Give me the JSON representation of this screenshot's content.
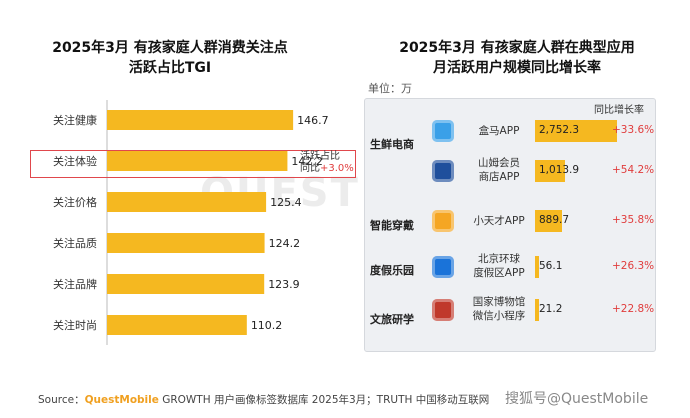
{
  "left_chart": {
    "title_line1": "2025年3月 有孩家庭人群消费关注点",
    "title_line2": "活跃占比TGI",
    "highlight_note_line1": "活跃占比",
    "highlight_note_prefix": "同比",
    "highlight_note_change": "+3.0%"
  },
  "right_chart": {
    "title_line1": "2025年3月 有孩家庭人群在典型应用",
    "title_line2": "月活跃用户规模同比增长率",
    "unit_label": "单位：万",
    "growth_header": "同比增长率",
    "categories": [
      {
        "name": "生鲜电商"
      },
      {
        "name": "智能穿戴"
      },
      {
        "name": "度假乐园"
      },
      {
        "name": "文旅研学"
      }
    ],
    "apps": [
      {
        "name_line1": "盒马APP",
        "name_line2": "",
        "value_label": "2,752.3",
        "growth": "+33.6%",
        "icon": "hema-icon",
        "icon_color": "#3aa0e8"
      },
      {
        "name_line1": "山姆会员",
        "name_line2": "商店APP",
        "value_label": "1,013.9",
        "growth": "+54.2%",
        "icon": "sams-club-icon",
        "icon_color": "#1f4f9c"
      },
      {
        "name_line1": "小天才APP",
        "name_line2": "",
        "value_label": "889.7",
        "growth": "+35.8%",
        "icon": "imoo-icon",
        "icon_color": "#f5a623"
      },
      {
        "name_line1": "北京环球",
        "name_line2": "度假区APP",
        "value_label": "56.1",
        "growth": "+26.3%",
        "icon": "universal-icon",
        "icon_color": "#1a73d9"
      },
      {
        "name_line1": "国家博物馆",
        "name_line2": "微信小程序",
        "value_label": "21.2",
        "growth": "+22.8%",
        "icon": "museum-icon",
        "icon_color": "#c0392b"
      }
    ]
  },
  "footer": {
    "prefix": "Source：",
    "brand": "QuestMobile",
    "text": " GROWTH 用户画像标签数据库 2025年3月；TRUTH 中国移动互联网",
    "watermark": "搜狐号@QuestMobile",
    "big_watermark": "QUEST MOBILE"
  },
  "chart_data": [
    {
      "type": "bar",
      "orientation": "horizontal",
      "title": "2025年3月 有孩家庭人群消费关注点活跃占比TGI",
      "categories": [
        "关注健康",
        "关注体验",
        "关注价格",
        "关注品质",
        "关注品牌",
        "关注时尚"
      ],
      "values": [
        146.7,
        142.2,
        125.4,
        124.2,
        123.9,
        110.2
      ],
      "xlim": [
        0,
        160
      ],
      "color": "#f5b820",
      "grid": false,
      "highlight_category": "关注体验"
    },
    {
      "type": "bar",
      "orientation": "horizontal",
      "title": "2025年3月 有孩家庭人群在典型应用月活跃用户规模同比增长率",
      "unit": "万",
      "categories": [
        "盒马APP",
        "山姆会员商店APP",
        "小天才APP",
        "北京环球度假区APP",
        "国家博物馆微信小程序"
      ],
      "groups": [
        "生鲜电商",
        "生鲜电商",
        "智能穿戴",
        "度假乐园",
        "文旅研学"
      ],
      "values": [
        2752.3,
        1013.9,
        889.7,
        56.1,
        21.2
      ],
      "growth_rates": [
        "+33.6%",
        "+54.2%",
        "+35.8%",
        "+26.3%",
        "+22.8%"
      ],
      "color": "#f5b820",
      "grid": false
    }
  ]
}
